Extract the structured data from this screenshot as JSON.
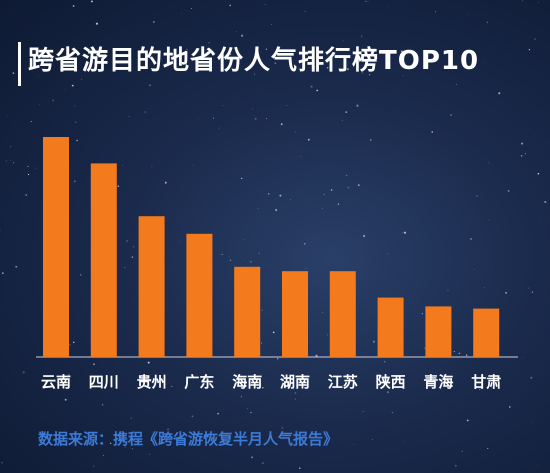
{
  "chart_data": {
    "type": "bar",
    "title": "跨省游目的地省份人气排行榜TOP10",
    "categories": [
      "云南",
      "四川",
      "贵州",
      "广东",
      "海南",
      "湖南",
      "江苏",
      "陕西",
      "青海",
      "甘肃"
    ],
    "values": [
      100,
      88,
      64,
      56,
      41,
      39,
      39,
      27,
      23,
      22
    ],
    "ylim": [
      0,
      100
    ],
    "grid": false,
    "legend": "none",
    "bar_color": "#f47a1e",
    "axis_color": "#c8d0e0"
  },
  "source_text": "数据来源：携程《跨省游恢复半月人气报告》"
}
